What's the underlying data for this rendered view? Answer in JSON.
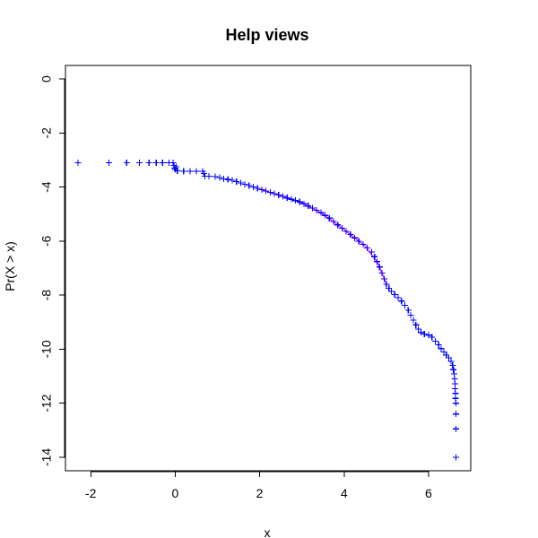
{
  "chart_data": {
    "type": "scatter",
    "title": "Help views",
    "xlabel": "x",
    "ylabel": "Pr(X > x)",
    "xlim": [
      -2.6,
      7.0
    ],
    "ylim": [
      -14.5,
      0.5
    ],
    "x_ticks": [
      -2,
      0,
      2,
      4,
      6
    ],
    "y_ticks": [
      0,
      -2,
      -4,
      -6,
      -8,
      -10,
      -12,
      -14
    ],
    "point_color": "#0000ff",
    "fit_color": "#ff00ff",
    "marker": "plus",
    "series": [
      {
        "values": [
          [
            -2.3,
            -3.1
          ],
          [
            -1.57,
            -3.1
          ],
          [
            -1.15,
            -3.1
          ],
          [
            -0.85,
            -3.1
          ],
          [
            -0.62,
            -3.1
          ],
          [
            -0.45,
            -3.1
          ],
          [
            -0.3,
            -3.1
          ],
          [
            -0.15,
            -3.1
          ],
          [
            -0.05,
            -3.1
          ],
          [
            -0.03,
            -3.2
          ],
          [
            -0.02,
            -3.3
          ],
          [
            0.0,
            -3.35
          ],
          [
            0.02,
            -3.25
          ],
          [
            0.05,
            -3.4
          ],
          [
            0.2,
            -3.42
          ],
          [
            0.35,
            -3.42
          ],
          [
            0.5,
            -3.42
          ],
          [
            0.65,
            -3.42
          ],
          [
            0.68,
            -3.5
          ],
          [
            0.7,
            -3.6
          ],
          [
            0.8,
            -3.6
          ],
          [
            0.95,
            -3.62
          ],
          [
            1.05,
            -3.65
          ],
          [
            1.15,
            -3.7
          ],
          [
            1.25,
            -3.72
          ],
          [
            1.35,
            -3.75
          ],
          [
            1.45,
            -3.8
          ],
          [
            1.55,
            -3.85
          ],
          [
            1.65,
            -3.9
          ],
          [
            1.75,
            -3.95
          ],
          [
            1.85,
            -4.0
          ],
          [
            1.95,
            -4.05
          ],
          [
            2.05,
            -4.1
          ],
          [
            2.15,
            -4.15
          ],
          [
            2.25,
            -4.2
          ],
          [
            2.35,
            -4.25
          ],
          [
            2.45,
            -4.3
          ],
          [
            2.55,
            -4.35
          ],
          [
            2.65,
            -4.4
          ],
          [
            2.75,
            -4.45
          ],
          [
            2.85,
            -4.5
          ],
          [
            2.95,
            -4.55
          ],
          [
            3.05,
            -4.62
          ],
          [
            3.15,
            -4.7
          ],
          [
            3.25,
            -4.78
          ],
          [
            3.35,
            -4.86
          ],
          [
            3.45,
            -4.95
          ],
          [
            3.55,
            -5.05
          ],
          [
            3.65,
            -5.15
          ],
          [
            3.75,
            -5.27
          ],
          [
            3.85,
            -5.4
          ],
          [
            3.95,
            -5.52
          ],
          [
            4.05,
            -5.64
          ],
          [
            4.15,
            -5.76
          ],
          [
            4.25,
            -5.88
          ],
          [
            4.35,
            -6.0
          ],
          [
            4.45,
            -6.12
          ],
          [
            4.55,
            -6.25
          ],
          [
            4.65,
            -6.4
          ],
          [
            4.72,
            -6.58
          ],
          [
            4.78,
            -6.76
          ],
          [
            4.84,
            -6.96
          ],
          [
            4.9,
            -7.18
          ],
          [
            4.95,
            -7.4
          ],
          [
            5.0,
            -7.6
          ],
          [
            5.06,
            -7.75
          ],
          [
            5.12,
            -7.86
          ],
          [
            5.2,
            -7.98
          ],
          [
            5.28,
            -8.1
          ],
          [
            5.36,
            -8.22
          ],
          [
            5.44,
            -8.38
          ],
          [
            5.52,
            -8.56
          ],
          [
            5.58,
            -8.74
          ],
          [
            5.64,
            -8.92
          ],
          [
            5.7,
            -9.1
          ],
          [
            5.76,
            -9.26
          ],
          [
            5.82,
            -9.38
          ],
          [
            5.9,
            -9.44
          ],
          [
            6.0,
            -9.48
          ],
          [
            6.08,
            -9.56
          ],
          [
            6.16,
            -9.7
          ],
          [
            6.24,
            -9.84
          ],
          [
            6.3,
            -9.98
          ],
          [
            6.36,
            -10.1
          ],
          [
            6.42,
            -10.22
          ],
          [
            6.48,
            -10.32
          ],
          [
            6.53,
            -10.45
          ],
          [
            6.57,
            -10.6
          ],
          [
            6.59,
            -10.76
          ],
          [
            6.61,
            -10.92
          ],
          [
            6.62,
            -11.1
          ],
          [
            6.63,
            -11.28
          ],
          [
            6.63,
            -11.46
          ],
          [
            6.64,
            -11.64
          ],
          [
            6.64,
            -11.82
          ],
          [
            6.65,
            -12.0
          ],
          [
            6.65,
            -12.4
          ],
          [
            6.65,
            -12.95
          ],
          [
            6.65,
            -14.0
          ]
        ]
      }
    ],
    "fit_line": [
      [
        2.0,
        -4.08
      ],
      [
        2.5,
        -4.32
      ],
      [
        3.0,
        -4.58
      ],
      [
        3.5,
        -5.0
      ],
      [
        4.0,
        -5.58
      ],
      [
        4.5,
        -6.18
      ],
      [
        4.8,
        -6.82
      ],
      [
        5.0,
        -7.58
      ]
    ]
  }
}
